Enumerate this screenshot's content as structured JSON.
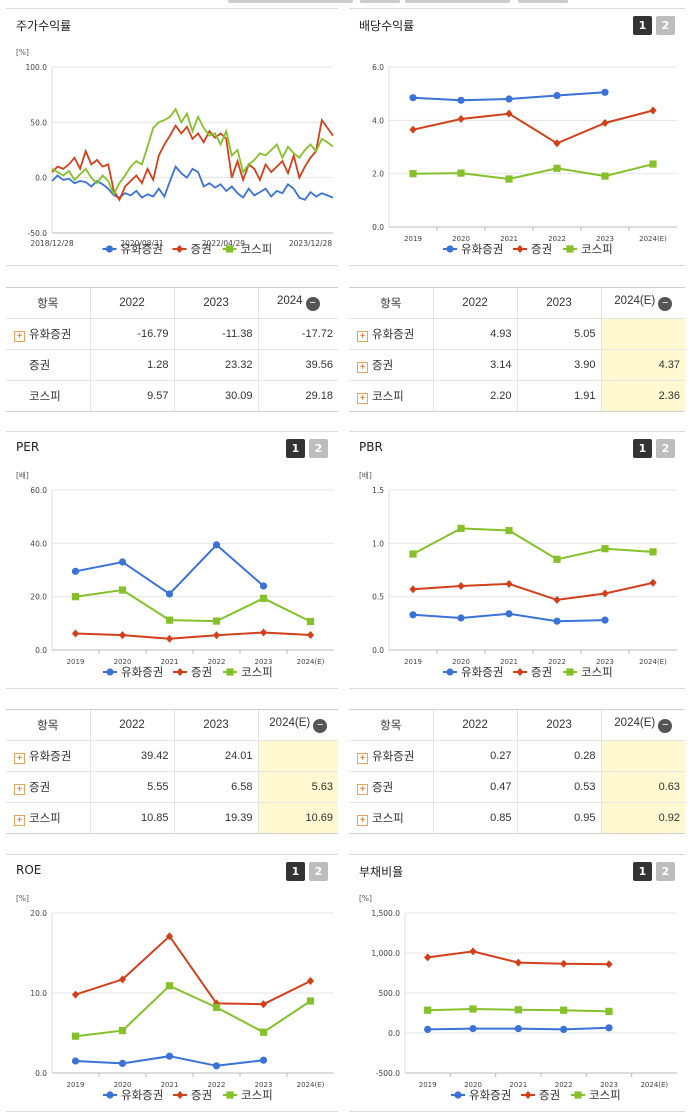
{
  "legend_names": [
    "유화증권",
    "증권",
    "코스피"
  ],
  "colors": {
    "s1": "#3a72d8",
    "s2": "#d2401b",
    "s3": "#85c12a"
  },
  "btn_labels": [
    "1",
    "2"
  ],
  "minus_icon": "−",
  "panels": {
    "stock": {
      "title": "주가수익률",
      "unit": "[%]",
      "table": {
        "header": [
          "항목",
          "2022",
          "2023",
          "2024"
        ],
        "rows": [
          {
            "label": "유화증권",
            "values": [
              "-16.79",
              "-11.38",
              "-17.72"
            ]
          },
          {
            "label": "증권",
            "values": [
              "1.28",
              "23.32",
              "39.56"
            ]
          },
          {
            "label": "코스피",
            "values": [
              "9.57",
              "30.09",
              "29.18"
            ]
          }
        ]
      }
    },
    "dividend": {
      "title": "배당수익률",
      "unit": "",
      "table": {
        "header": [
          "항목",
          "2022",
          "2023",
          "2024(E)"
        ],
        "rows": [
          {
            "label": "유화증권",
            "values": [
              "4.93",
              "5.05",
              ""
            ]
          },
          {
            "label": "증권",
            "values": [
              "3.14",
              "3.90",
              "4.37"
            ]
          },
          {
            "label": "코스피",
            "values": [
              "2.20",
              "1.91",
              "2.36"
            ]
          }
        ]
      }
    },
    "per": {
      "title": "PER",
      "unit": "[배]",
      "table": {
        "header": [
          "항목",
          "2022",
          "2023",
          "2024(E)"
        ],
        "rows": [
          {
            "label": "유화증권",
            "values": [
              "39.42",
              "24.01",
              ""
            ]
          },
          {
            "label": "증권",
            "values": [
              "5.55",
              "6.58",
              "5.63"
            ]
          },
          {
            "label": "코스피",
            "values": [
              "10.85",
              "19.39",
              "10.69"
            ]
          }
        ]
      }
    },
    "pbr": {
      "title": "PBR",
      "unit": "[배]",
      "table": {
        "header": [
          "항목",
          "2022",
          "2023",
          "2024(E)"
        ],
        "rows": [
          {
            "label": "유화증권",
            "values": [
              "0.27",
              "0.28",
              ""
            ]
          },
          {
            "label": "증권",
            "values": [
              "0.47",
              "0.53",
              "0.63"
            ]
          },
          {
            "label": "코스피",
            "values": [
              "0.85",
              "0.95",
              "0.92"
            ]
          }
        ]
      }
    },
    "roe": {
      "title": "ROE",
      "unit": "[%]"
    },
    "debt": {
      "title": "부채비율",
      "unit": "[%]"
    }
  },
  "chart_data": [
    {
      "id": "stock",
      "type": "line",
      "title": "주가수익률",
      "ylabel": "[%]",
      "ylim": [
        -50,
        100
      ],
      "yticks": [
        -50,
        0,
        50,
        100
      ],
      "ytick_labels": [
        "-50.0",
        "0.0",
        "50.0",
        "100.0"
      ],
      "xticks": [
        "2018/12/28",
        "2020/08/31",
        "2022/04/29",
        "2023/12/28"
      ],
      "x_range": [
        0,
        100
      ],
      "xtick_positions": [
        0,
        32,
        61,
        92
      ],
      "series": [
        {
          "name": "유화증권",
          "x": [
            0,
            2,
            4,
            6,
            8,
            10,
            12,
            14,
            16,
            18,
            20,
            22,
            24,
            26,
            28,
            30,
            32,
            34,
            36,
            38,
            40,
            42,
            44,
            46,
            48,
            50,
            52,
            54,
            56,
            58,
            60,
            62,
            64,
            66,
            68,
            70,
            72,
            74,
            76,
            78,
            80,
            82,
            84,
            86,
            88,
            90,
            92,
            94,
            96,
            98,
            100
          ],
          "values": [
            -3,
            2,
            -2,
            -1,
            -5,
            -3,
            -4,
            -8,
            -3,
            -6,
            -10,
            -16,
            -18,
            -14,
            -16,
            -12,
            -18,
            -15,
            -17,
            -10,
            -17,
            -3,
            10,
            4,
            0,
            8,
            5,
            -8,
            -5,
            -9,
            -6,
            -12,
            -8,
            -14,
            -18,
            -10,
            -16,
            -13,
            -10,
            -17,
            -12,
            -14,
            -6,
            -10,
            -18,
            -20,
            -13,
            -17,
            -14,
            -16,
            -18
          ]
        },
        {
          "name": "증권",
          "x": [
            0,
            2,
            4,
            6,
            8,
            10,
            12,
            14,
            16,
            18,
            20,
            22,
            24,
            26,
            28,
            30,
            32,
            34,
            36,
            38,
            40,
            42,
            44,
            46,
            48,
            50,
            52,
            54,
            56,
            58,
            60,
            62,
            64,
            66,
            68,
            70,
            72,
            74,
            76,
            78,
            80,
            82,
            84,
            86,
            88,
            90,
            92,
            94,
            96,
            98,
            100
          ],
          "values": [
            5,
            10,
            8,
            12,
            18,
            8,
            24,
            12,
            16,
            10,
            12,
            -12,
            -20,
            -8,
            -3,
            2,
            -5,
            8,
            -2,
            20,
            30,
            38,
            47,
            40,
            46,
            35,
            40,
            32,
            42,
            36,
            40,
            35,
            0,
            15,
            -2,
            12,
            8,
            -2,
            12,
            5,
            10,
            15,
            4,
            20,
            0,
            10,
            18,
            24,
            52,
            45,
            38
          ]
        },
        {
          "name": "코스피",
          "x": [
            0,
            2,
            4,
            6,
            8,
            10,
            12,
            14,
            16,
            18,
            20,
            22,
            24,
            26,
            28,
            30,
            32,
            34,
            36,
            38,
            40,
            42,
            44,
            46,
            48,
            50,
            52,
            54,
            56,
            58,
            60,
            62,
            64,
            66,
            68,
            70,
            72,
            74,
            76,
            78,
            80,
            82,
            84,
            86,
            88,
            90,
            92,
            94,
            96,
            98,
            100
          ],
          "values": [
            8,
            5,
            2,
            6,
            -2,
            3,
            8,
            0,
            -5,
            2,
            -3,
            -15,
            -5,
            2,
            10,
            15,
            12,
            28,
            45,
            50,
            52,
            55,
            62,
            50,
            58,
            42,
            55,
            45,
            38,
            40,
            30,
            42,
            20,
            25,
            5,
            12,
            16,
            22,
            20,
            25,
            30,
            18,
            28,
            22,
            18,
            25,
            30,
            24,
            35,
            32,
            28
          ]
        }
      ]
    },
    {
      "id": "dividend",
      "type": "line",
      "title": "배당수익률",
      "ylim": [
        0,
        6
      ],
      "yticks": [
        0,
        2,
        4,
        6
      ],
      "ytick_labels": [
        "0.0",
        "2.0",
        "4.0",
        "6.0"
      ],
      "categories": [
        "2019",
        "2020",
        "2021",
        "2022",
        "2023",
        "2024(E)"
      ],
      "series": [
        {
          "name": "유화증권",
          "values": [
            4.85,
            4.75,
            4.8,
            4.93,
            5.05,
            null
          ]
        },
        {
          "name": "증권",
          "values": [
            3.65,
            4.05,
            4.25,
            3.14,
            3.9,
            4.37
          ]
        },
        {
          "name": "코스피",
          "values": [
            2.0,
            2.02,
            1.8,
            2.2,
            1.91,
            2.36
          ]
        }
      ]
    },
    {
      "id": "per",
      "type": "line",
      "title": "PER",
      "ylabel": "[배]",
      "ylim": [
        0,
        60
      ],
      "yticks": [
        0,
        20,
        40,
        60
      ],
      "ytick_labels": [
        "0.0",
        "20.0",
        "40.0",
        "60.0"
      ],
      "categories": [
        "2019",
        "2020",
        "2021",
        "2022",
        "2023",
        "2024(E)"
      ],
      "series": [
        {
          "name": "유화증권",
          "values": [
            29.5,
            33,
            21,
            39.42,
            24.01,
            null
          ]
        },
        {
          "name": "증권",
          "values": [
            6.2,
            5.6,
            4.2,
            5.55,
            6.58,
            5.63
          ]
        },
        {
          "name": "코스피",
          "values": [
            20,
            22.5,
            11.2,
            10.85,
            19.39,
            10.69
          ]
        }
      ]
    },
    {
      "id": "pbr",
      "type": "line",
      "title": "PBR",
      "ylabel": "[배]",
      "ylim": [
        0,
        1.5
      ],
      "yticks": [
        0,
        0.5,
        1.0,
        1.5
      ],
      "ytick_labels": [
        "0.0",
        "0.5",
        "1.0",
        "1.5"
      ],
      "categories": [
        "2019",
        "2020",
        "2021",
        "2022",
        "2023",
        "2024(E)"
      ],
      "series": [
        {
          "name": "유화증권",
          "values": [
            0.33,
            0.3,
            0.34,
            0.27,
            0.28,
            null
          ]
        },
        {
          "name": "증권",
          "values": [
            0.57,
            0.6,
            0.62,
            0.47,
            0.53,
            0.63
          ]
        },
        {
          "name": "코스피",
          "values": [
            0.9,
            1.14,
            1.12,
            0.85,
            0.95,
            0.92
          ]
        }
      ]
    },
    {
      "id": "roe",
      "type": "line",
      "title": "ROE",
      "ylabel": "[%]",
      "ylim": [
        0,
        20
      ],
      "yticks": [
        0,
        10,
        20
      ],
      "ytick_labels": [
        "0.0",
        "10.0",
        "20.0"
      ],
      "categories": [
        "2019",
        "2020",
        "2021",
        "2022",
        "2023",
        "2024(E)"
      ],
      "series": [
        {
          "name": "유화증권",
          "values": [
            1.5,
            1.2,
            2.1,
            0.9,
            1.6,
            null
          ]
        },
        {
          "name": "증권",
          "values": [
            9.8,
            11.7,
            17.1,
            8.7,
            8.6,
            11.5
          ]
        },
        {
          "name": "코스피",
          "values": [
            4.6,
            5.3,
            10.9,
            8.2,
            5.1,
            9.0
          ]
        }
      ]
    },
    {
      "id": "debt",
      "type": "line",
      "title": "부채비율",
      "ylabel": "[%]",
      "ylim": [
        -500,
        1500
      ],
      "yticks": [
        -500,
        0,
        500,
        1000,
        1500
      ],
      "ytick_labels": [
        "-500.0",
        "0.0",
        "500.0",
        "1,000.0",
        "1,500.0"
      ],
      "categories": [
        "2019",
        "2020",
        "2021",
        "2022",
        "2023",
        "2024(E)"
      ],
      "series": [
        {
          "name": "유화증권",
          "values": [
            45,
            55,
            55,
            45,
            65,
            null
          ]
        },
        {
          "name": "증권",
          "values": [
            945,
            1020,
            880,
            865,
            860,
            null
          ]
        },
        {
          "name": "코스피",
          "values": [
            285,
            300,
            290,
            285,
            270,
            null
          ]
        }
      ]
    }
  ]
}
